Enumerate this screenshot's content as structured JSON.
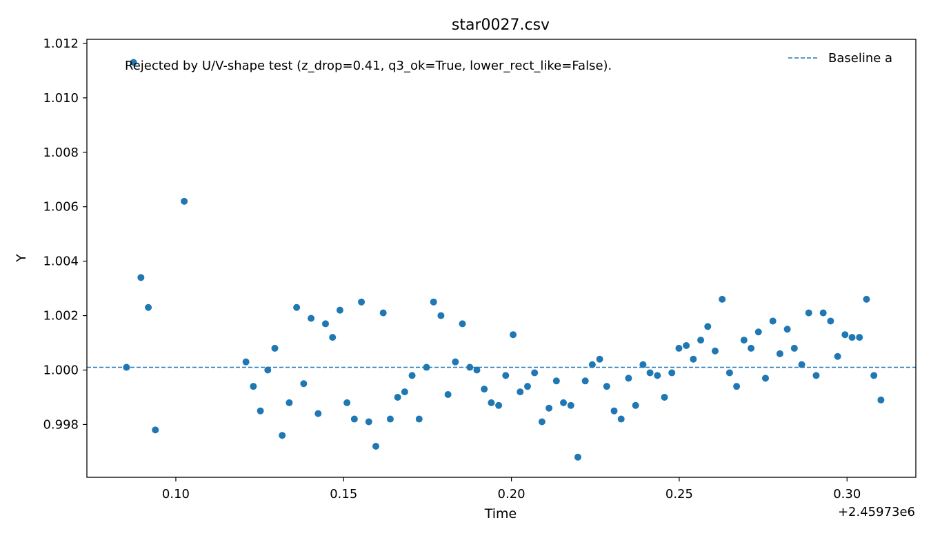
{
  "chart_data": {
    "type": "scatter",
    "title": "star0027.csv",
    "xlabel": "Time",
    "ylabel": "Y",
    "x_offset_label": "+2.45973e6",
    "xlim": [
      0.0735,
      0.3205
    ],
    "ylim": [
      0.99606,
      1.01215
    ],
    "xticks": [
      {
        "value": 0.1,
        "label": "0.10"
      },
      {
        "value": 0.15,
        "label": "0.15"
      },
      {
        "value": 0.2,
        "label": "0.20"
      },
      {
        "value": 0.25,
        "label": "0.25"
      },
      {
        "value": 0.3,
        "label": "0.30"
      }
    ],
    "yticks": [
      {
        "value": 0.998,
        "label": "0.998"
      },
      {
        "value": 1.0,
        "label": "1.000"
      },
      {
        "value": 1.002,
        "label": "1.002"
      },
      {
        "value": 1.004,
        "label": "1.004"
      },
      {
        "value": 1.006,
        "label": "1.006"
      },
      {
        "value": 1.008,
        "label": "1.008"
      },
      {
        "value": 1.01,
        "label": "1.010"
      },
      {
        "value": 1.012,
        "label": "1.012"
      }
    ],
    "annotation": "Rejected by U/V-shape test (z_drop=0.41, q3_ok=True, lower_rect_like=False).",
    "grid": false,
    "legend": {
      "placement": "top-right",
      "entries": [
        {
          "label": "Baseline a",
          "style": "dashed-line"
        }
      ]
    },
    "baseline": {
      "name": "Baseline a",
      "y": 1.0001,
      "color": "#1f77b4"
    },
    "series": [
      {
        "marker_color": "#1f77b4",
        "points": [
          [
            0.0853,
            1.0001
          ],
          [
            0.0874,
            1.0113
          ],
          [
            0.0896,
            1.0034
          ],
          [
            0.0918,
            1.0023
          ],
          [
            0.0939,
            0.9978
          ],
          [
            0.1025,
            1.0062
          ],
          [
            0.1209,
            1.0003
          ],
          [
            0.1231,
            0.9994
          ],
          [
            0.1252,
            0.9985
          ],
          [
            0.1274,
            1.0
          ],
          [
            0.1295,
            1.0008
          ],
          [
            0.1317,
            0.9976
          ],
          [
            0.1338,
            0.9988
          ],
          [
            0.136,
            1.0023
          ],
          [
            0.1381,
            0.9995
          ],
          [
            0.1403,
            1.0019
          ],
          [
            0.1424,
            0.9984
          ],
          [
            0.1446,
            1.0017
          ],
          [
            0.1467,
            1.0012
          ],
          [
            0.1489,
            1.0022
          ],
          [
            0.151,
            0.9988
          ],
          [
            0.1532,
            0.9982
          ],
          [
            0.1553,
            1.0025
          ],
          [
            0.1575,
            0.9981
          ],
          [
            0.1596,
            0.9972
          ],
          [
            0.1618,
            1.0021
          ],
          [
            0.1639,
            0.9982
          ],
          [
            0.1661,
            0.999
          ],
          [
            0.1682,
            0.9992
          ],
          [
            0.1704,
            0.9998
          ],
          [
            0.1725,
            0.9982
          ],
          [
            0.1747,
            1.0001
          ],
          [
            0.1768,
            1.0025
          ],
          [
            0.179,
            1.002
          ],
          [
            0.1811,
            0.9991
          ],
          [
            0.1833,
            1.0003
          ],
          [
            0.1854,
            1.0017
          ],
          [
            0.1876,
            1.0001
          ],
          [
            0.1897,
            1.0
          ],
          [
            0.1919,
            0.9993
          ],
          [
            0.194,
            0.9988
          ],
          [
            0.1962,
            0.9987
          ],
          [
            0.1983,
            0.9998
          ],
          [
            0.2005,
            1.0013
          ],
          [
            0.2026,
            0.9992
          ],
          [
            0.2048,
            0.9994
          ],
          [
            0.2069,
            0.9999
          ],
          [
            0.2091,
            0.9981
          ],
          [
            0.2112,
            0.9986
          ],
          [
            0.2134,
            0.9996
          ],
          [
            0.2155,
            0.9988
          ],
          [
            0.2177,
            0.9987
          ],
          [
            0.2198,
            0.9968
          ],
          [
            0.222,
            0.9996
          ],
          [
            0.2241,
            1.0002
          ],
          [
            0.2263,
            1.0004
          ],
          [
            0.2284,
            0.9994
          ],
          [
            0.2306,
            0.9985
          ],
          [
            0.2327,
            0.9982
          ],
          [
            0.2349,
            0.9997
          ],
          [
            0.237,
            0.9987
          ],
          [
            0.2392,
            1.0002
          ],
          [
            0.2413,
            0.9999
          ],
          [
            0.2435,
            0.9998
          ],
          [
            0.2456,
            0.999
          ],
          [
            0.2478,
            0.9999
          ],
          [
            0.2499,
            1.0008
          ],
          [
            0.2521,
            1.0009
          ],
          [
            0.2542,
            1.0004
          ],
          [
            0.2564,
            1.0011
          ],
          [
            0.2585,
            1.0016
          ],
          [
            0.2607,
            1.0007
          ],
          [
            0.2628,
            1.0026
          ],
          [
            0.265,
            0.9999
          ],
          [
            0.2671,
            0.9994
          ],
          [
            0.2693,
            1.0011
          ],
          [
            0.2714,
            1.0008
          ],
          [
            0.2736,
            1.0014
          ],
          [
            0.2757,
            0.9997
          ],
          [
            0.2779,
            1.0018
          ],
          [
            0.28,
            1.0006
          ],
          [
            0.2822,
            1.0015
          ],
          [
            0.2843,
            1.0008
          ],
          [
            0.2865,
            1.0002
          ],
          [
            0.2886,
            1.0021
          ],
          [
            0.2908,
            0.9998
          ],
          [
            0.2929,
            1.0021
          ],
          [
            0.2951,
            1.0018
          ],
          [
            0.2972,
            1.0005
          ],
          [
            0.2994,
            1.0013
          ],
          [
            0.3015,
            1.0012
          ],
          [
            0.3037,
            1.0012
          ],
          [
            0.3058,
            1.0026
          ],
          [
            0.308,
            0.9998
          ],
          [
            0.3101,
            0.9989
          ]
        ]
      }
    ]
  }
}
